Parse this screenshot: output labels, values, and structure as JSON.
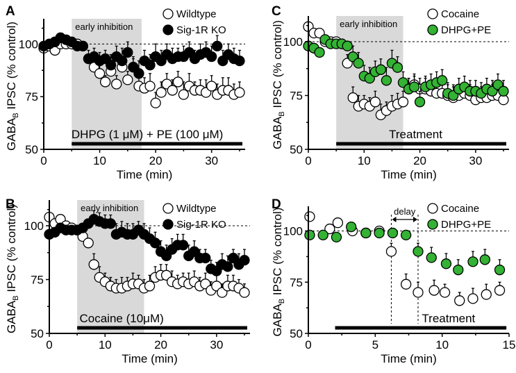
{
  "chart_data": [
    {
      "type": "scatter",
      "panel": "A",
      "xlabel": "Time (min)",
      "ylabel": "GABA_B IPSC (% control)",
      "xlim": [
        0,
        36
      ],
      "ylim": [
        50,
        110
      ],
      "xticks": [
        0,
        10,
        20,
        30
      ],
      "yticks": [
        50,
        75,
        100
      ],
      "reference_line": 100,
      "shaded": {
        "label": "early inhibition",
        "x": [
          5,
          17.5
        ]
      },
      "treatment_bar": {
        "label": "DHPG (1 μM) + PE (100 μM)",
        "x": [
          5,
          35.5
        ]
      },
      "legend": "top-right",
      "series": [
        {
          "name": "Wildtype",
          "marker": "open",
          "x": [
            0,
            1,
            2,
            3,
            4,
            5,
            6,
            7,
            8,
            9,
            10,
            11,
            12,
            13,
            14,
            15,
            16,
            17,
            18,
            19,
            20,
            21,
            22,
            23,
            24,
            25,
            26,
            27,
            28,
            29,
            30,
            31,
            32,
            33,
            34,
            35
          ],
          "y": [
            98,
            99,
            97,
            100,
            100,
            100,
            100,
            99,
            93,
            89,
            86,
            82,
            87,
            81,
            89,
            83,
            89,
            80,
            79,
            80,
            72,
            77,
            81,
            78,
            82,
            76,
            80,
            78,
            78,
            77,
            80,
            76,
            78,
            78,
            76,
            77
          ],
          "err": [
            0,
            0,
            0,
            0,
            0,
            0,
            0,
            0,
            0,
            4,
            4,
            3,
            4,
            4,
            5,
            4,
            4,
            6,
            5,
            6,
            5,
            5,
            5,
            5,
            5,
            6,
            6,
            4,
            5,
            6,
            5,
            5,
            6,
            6,
            5,
            5
          ]
        },
        {
          "name": "Sig-1R KO",
          "marker": "filled",
          "x": [
            0,
            1,
            2,
            3,
            4,
            5,
            6,
            7,
            8,
            9,
            10,
            11,
            12,
            13,
            14,
            15,
            16,
            17,
            18,
            19,
            20,
            21,
            22,
            23,
            24,
            25,
            26,
            27,
            28,
            29,
            30,
            31,
            32,
            33,
            34,
            35
          ],
          "y": [
            99,
            100,
            101,
            103,
            102,
            101,
            99,
            99,
            93,
            94,
            92,
            93,
            90,
            94,
            92,
            96,
            89,
            86,
            92,
            90,
            94,
            92,
            95,
            93,
            94,
            94,
            96,
            93,
            95,
            96,
            94,
            99,
            92,
            95,
            93,
            92
          ],
          "err": [
            0,
            0,
            0,
            0,
            0,
            0,
            0,
            0,
            4,
            4,
            4,
            4,
            5,
            5,
            6,
            5,
            5,
            6,
            5,
            5,
            6,
            5,
            5,
            5,
            4,
            5,
            5,
            4,
            5,
            5,
            5,
            5,
            5,
            5,
            5,
            5
          ]
        }
      ]
    },
    {
      "type": "scatter",
      "panel": "B",
      "xlabel": "Time (min)",
      "ylabel": "GABA_B IPSC (% control)",
      "xlim": [
        0,
        36
      ],
      "ylim": [
        50,
        110
      ],
      "xticks": [
        0,
        10,
        20,
        30
      ],
      "yticks": [
        50,
        75,
        100
      ],
      "reference_line": 100,
      "shaded": {
        "label": "early inhibition",
        "x": [
          5,
          17
        ]
      },
      "treatment_bar": {
        "label": "Cocaine (10μM)",
        "x": [
          5,
          35.5
        ]
      },
      "legend": "top-right",
      "series": [
        {
          "name": "Wildtype",
          "marker": "open",
          "x": [
            0,
            1,
            2,
            3,
            4,
            5,
            6,
            7,
            8,
            9,
            10,
            11,
            12,
            13,
            14,
            15,
            16,
            17,
            18,
            19,
            20,
            21,
            22,
            23,
            24,
            25,
            26,
            27,
            28,
            29,
            30,
            31,
            32,
            33,
            34,
            35
          ],
          "y": [
            104,
            101,
            103,
            100,
            99,
            98,
            95,
            92,
            82,
            76,
            74,
            72,
            71,
            71,
            72,
            73,
            73,
            71,
            72,
            76,
            77,
            77,
            74,
            73,
            74,
            73,
            74,
            72,
            73,
            70,
            72,
            69,
            72,
            72,
            71,
            69
          ],
          "err": [
            0,
            0,
            0,
            0,
            0,
            0,
            0,
            0,
            5,
            5,
            4,
            4,
            4,
            5,
            4,
            5,
            4,
            4,
            5,
            5,
            5,
            5,
            5,
            4,
            4,
            5,
            5,
            4,
            5,
            4,
            5,
            4,
            5,
            5,
            4,
            4
          ]
        },
        {
          "name": "Sig-1R KO",
          "marker": "filled",
          "x": [
            0,
            1,
            2,
            3,
            4,
            5,
            6,
            7,
            8,
            9,
            10,
            11,
            12,
            13,
            14,
            15,
            16,
            17,
            18,
            19,
            20,
            21,
            22,
            23,
            24,
            25,
            26,
            27,
            28,
            29,
            30,
            31,
            32,
            33,
            34,
            35
          ],
          "y": [
            96,
            97,
            99,
            98,
            98,
            98,
            99,
            101,
            103,
            102,
            101,
            101,
            96,
            97,
            96,
            96,
            98,
            96,
            94,
            92,
            88,
            86,
            89,
            91,
            91,
            86,
            88,
            85,
            85,
            80,
            79,
            82,
            81,
            85,
            82,
            84
          ],
          "err": [
            0,
            0,
            0,
            0,
            0,
            0,
            0,
            0,
            4,
            4,
            4,
            4,
            5,
            5,
            5,
            5,
            4,
            5,
            5,
            5,
            5,
            5,
            5,
            5,
            5,
            5,
            5,
            4,
            4,
            4,
            4,
            5,
            5,
            4,
            5,
            5
          ]
        }
      ]
    },
    {
      "type": "scatter",
      "panel": "C",
      "xlabel": "Time (min)",
      "ylabel": "GABA_B IPSC (% control)",
      "xlim": [
        0,
        36
      ],
      "ylim": [
        50,
        110
      ],
      "xticks": [
        0,
        10,
        20,
        30
      ],
      "yticks": [
        50,
        75,
        100
      ],
      "reference_line": 100,
      "shaded": {
        "label": "early inhibition",
        "x": [
          5,
          17
        ]
      },
      "treatment_bar": {
        "label": "Treatment",
        "x": [
          5,
          35.5
        ]
      },
      "legend": "top-right",
      "series": [
        {
          "name": "Cocaine",
          "marker": "open",
          "x": [
            0,
            1,
            2,
            3,
            4,
            5,
            6,
            7,
            8,
            9,
            10,
            11,
            12,
            13,
            14,
            15,
            16,
            17,
            18,
            19,
            20,
            21,
            22,
            23,
            24,
            25,
            26,
            27,
            28,
            29,
            30,
            31,
            32,
            33,
            34,
            35
          ],
          "y": [
            107,
            104,
            104,
            100,
            100,
            100,
            99,
            90,
            74,
            70,
            71,
            70,
            72,
            66,
            68,
            70,
            71,
            72,
            78,
            80,
            78,
            78,
            77,
            76,
            76,
            75,
            74,
            75,
            76,
            75,
            73,
            74,
            74,
            75,
            75,
            73
          ],
          "err": [
            0,
            0,
            0,
            0,
            0,
            0,
            0,
            4,
            5,
            5,
            4,
            4,
            5,
            5,
            4,
            5,
            5,
            5,
            5,
            5,
            5,
            5,
            5,
            5,
            4,
            5,
            5,
            4,
            5,
            5,
            4,
            5,
            4,
            5,
            4,
            4
          ]
        },
        {
          "name": "DHPG+PE",
          "marker": "green",
          "x": [
            0,
            1,
            2,
            3,
            4,
            5,
            6,
            7,
            8,
            9,
            10,
            11,
            12,
            13,
            14,
            15,
            16,
            17,
            18,
            19,
            20,
            21,
            22,
            23,
            24,
            25,
            26,
            27,
            28,
            29,
            30,
            31,
            32,
            33,
            34,
            35
          ],
          "y": [
            98,
            97,
            95,
            101,
            99,
            99,
            99,
            98,
            93,
            90,
            84,
            83,
            86,
            87,
            82,
            90,
            88,
            81,
            78,
            79,
            72,
            79,
            80,
            81,
            82,
            76,
            75,
            78,
            79,
            77,
            77,
            76,
            78,
            77,
            80,
            77
          ],
          "err": [
            0,
            0,
            0,
            0,
            0,
            0,
            0,
            0,
            5,
            5,
            5,
            5,
            5,
            5,
            6,
            6,
            5,
            5,
            5,
            5,
            5,
            5,
            5,
            5,
            5,
            5,
            5,
            5,
            5,
            5,
            5,
            5,
            5,
            5,
            5,
            5
          ]
        }
      ]
    },
    {
      "type": "scatter",
      "panel": "D",
      "xlabel": "Time (min)",
      "ylabel": "GABA_B IPSC (% control)",
      "xlim": [
        0,
        15
      ],
      "ylim": [
        50,
        110
      ],
      "xticks": [
        0,
        5,
        10,
        15
      ],
      "yticks": [
        50,
        75,
        100
      ],
      "reference_line": 100,
      "delay": {
        "label": "delay",
        "x": [
          6.2,
          8.2
        ]
      },
      "treatment_bar": {
        "label": "Treatment",
        "x": [
          2,
          14.8
        ]
      },
      "legend": "top-right",
      "series": [
        {
          "name": "Cocaine",
          "marker": "open",
          "x": [
            0.1,
            1.6,
            2.2,
            3.3,
            4.3,
            5.3,
            6.2,
            7.3,
            8.2,
            9.4,
            10.2,
            11.3,
            12.3,
            13.3,
            14.3
          ],
          "y": [
            107,
            101,
            104,
            100,
            99,
            100,
            90,
            74,
            70,
            71,
            70,
            66,
            67,
            69,
            71
          ],
          "err": [
            0,
            0,
            0,
            0,
            0,
            0,
            4,
            5,
            5,
            5,
            4,
            4,
            5,
            5,
            4
          ]
        },
        {
          "name": "DHPG+PE",
          "marker": "green",
          "x": [
            0.1,
            1.1,
            2.1,
            3.2,
            4.3,
            5.3,
            6.3,
            7.3,
            8.2,
            9.2,
            10.3,
            11.2,
            12.3,
            13.2,
            14.3
          ],
          "y": [
            98,
            98,
            97,
            102,
            99,
            99,
            99,
            98,
            90,
            87,
            84,
            81,
            85,
            86,
            81
          ],
          "err": [
            0,
            0,
            0,
            0,
            0,
            0,
            0,
            0,
            4,
            5,
            5,
            5,
            5,
            5,
            5
          ]
        }
      ]
    }
  ]
}
